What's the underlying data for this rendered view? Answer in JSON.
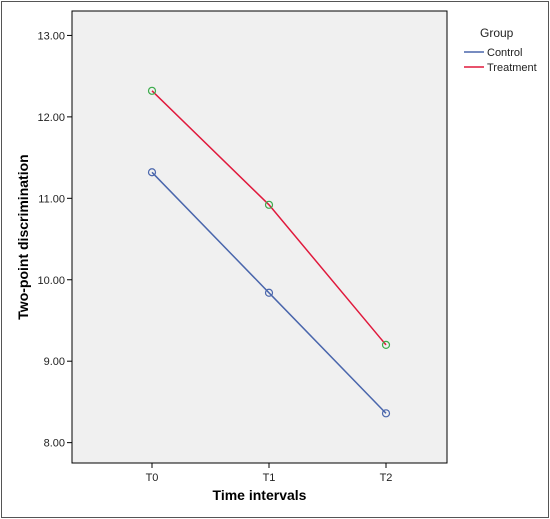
{
  "chart_data": {
    "type": "line",
    "title": "",
    "xlabel": "Time intervals",
    "ylabel": "Two-point discrimination",
    "categories": [
      "T0",
      "T1",
      "T2"
    ],
    "ylim": [
      7.75,
      13.3
    ],
    "yticks": [
      8.0,
      9.0,
      10.0,
      11.0,
      12.0,
      13.0
    ],
    "ytick_labels": [
      "8.00",
      "9.00",
      "10.00",
      "11.00",
      "12.00",
      "13.00"
    ],
    "grid": false,
    "legend": {
      "title": "Group",
      "placement": "right"
    },
    "series": [
      {
        "name": "Control",
        "values": [
          11.32,
          9.84,
          8.36
        ],
        "line_color": "#4a66ac",
        "marker_color": "#4a66ac"
      },
      {
        "name": "Treatment",
        "values": [
          12.32,
          10.92,
          9.2
        ],
        "line_color": "#e0193c",
        "marker_color": "#3aab4a"
      }
    ],
    "plot_background": "#f0f0f0"
  }
}
